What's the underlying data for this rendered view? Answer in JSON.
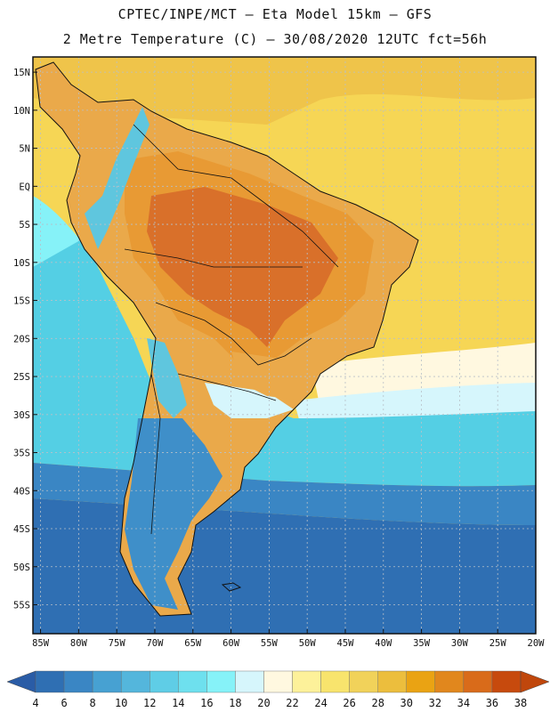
{
  "header": {
    "line1": "CPTEC/INPE/MCT –  Eta Model 15km – GFS",
    "line2": "2 Metre Temperature (C) – 30/08/2020 12UTC fct=56h"
  },
  "map": {
    "lat_labels": [
      "15N",
      "10N",
      "5N",
      "EQ",
      "5S",
      "10S",
      "15S",
      "20S",
      "25S",
      "30S",
      "35S",
      "40S",
      "45S",
      "50S",
      "55S"
    ],
    "lon_labels": [
      "85W",
      "80W",
      "75W",
      "70W",
      "65W",
      "60W",
      "55W",
      "50W",
      "45W",
      "40W",
      "35W",
      "30W",
      "25W",
      "20W"
    ]
  },
  "colorbar": {
    "labels": [
      "4",
      "6",
      "8",
      "10",
      "12",
      "14",
      "16",
      "18",
      "20",
      "22",
      "24",
      "26",
      "28",
      "30",
      "32",
      "34",
      "36",
      "38"
    ],
    "colors": [
      "#2f6fb3",
      "#3a86c4",
      "#47a1d2",
      "#54b6dc",
      "#5fcde6",
      "#6ee0ee",
      "#86f2f8",
      "#d6f6fc",
      "#fff8e0",
      "#fdf19a",
      "#f8e46d",
      "#f1d25a",
      "#ecbe3d",
      "#eaa313",
      "#e1871d",
      "#d96b1a",
      "#c74a0d"
    ],
    "low_color": "#2a5ca6",
    "high_color": "#c0470c"
  },
  "palette": {
    "ocean_deep": "#2f6fb3",
    "ocean_mid": "#3a86c4",
    "ocean_cyan": "#54cfe4",
    "ocean_light": "#86f2f8",
    "band_pale": "#d6f6fc",
    "band_cream": "#fff8e0",
    "tropic_yellow": "#f6d655",
    "tropic_gold": "#efc44a",
    "land_orange": "#e89a34",
    "land_hot": "#d9702a",
    "land_warm": "#eaa94a",
    "andes_cold": "#5fc6de",
    "patagonia": "#3f8fc9",
    "border": "#111111",
    "grid": "#b8c0c8"
  }
}
